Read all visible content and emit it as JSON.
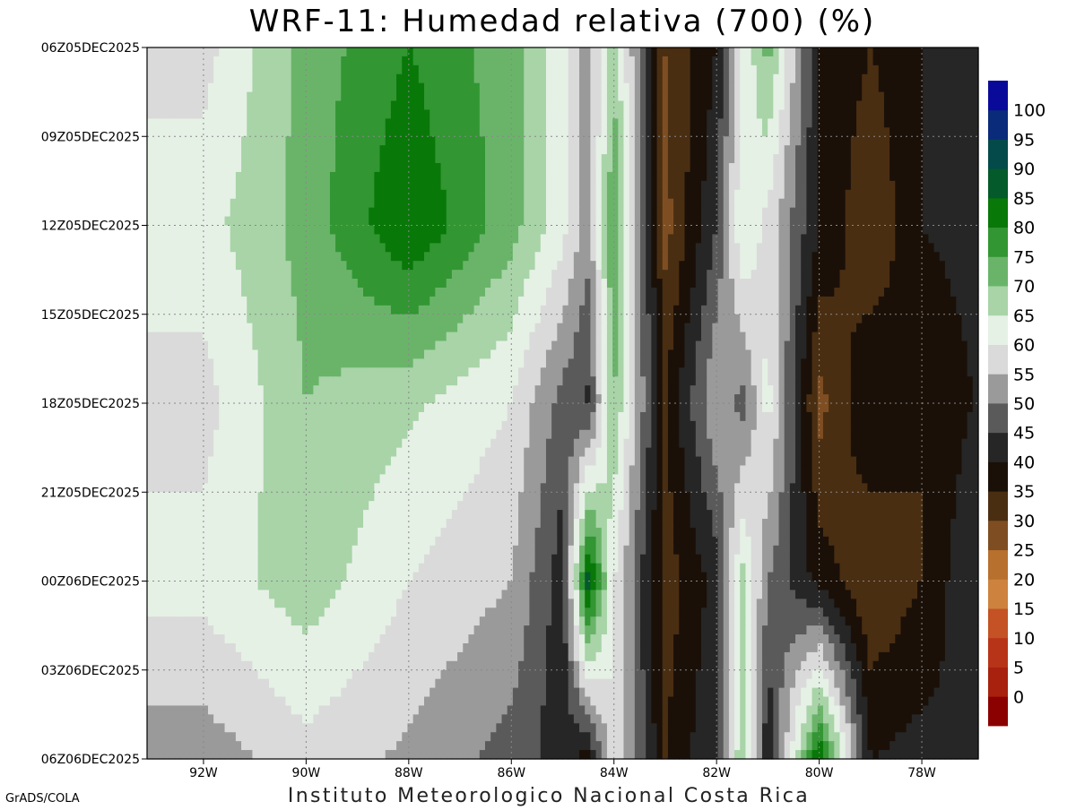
{
  "chart_data": {
    "type": "heatmap",
    "title": "WRF-11: Humedad relativa (700) (%)",
    "subtitle": "Instituto Meteorologico Nacional Costa Rica",
    "credit": "GrADS/COLA",
    "x_axis": {
      "label": "",
      "tick_labels": [
        "92W",
        "90W",
        "88W",
        "86W",
        "84W",
        "82W",
        "80W",
        "78W"
      ],
      "tick_values": [
        -92,
        -90,
        -88,
        -86,
        -84,
        -82,
        -80,
        -78
      ],
      "range": [
        -93.1,
        -76.9
      ]
    },
    "y_axis": {
      "label": "",
      "tick_labels": [
        "06Z05DEC2025",
        "09Z05DEC2025",
        "12Z05DEC2025",
        "15Z05DEC2025",
        "18Z05DEC2025",
        "21Z05DEC2025",
        "00Z06DEC2025",
        "03Z06DEC2025",
        "06Z06DEC2025"
      ],
      "tick_hours": [
        0,
        3,
        6,
        9,
        12,
        15,
        18,
        21,
        24
      ],
      "range_hours": [
        0,
        24
      ],
      "direction": "time increases downward"
    },
    "grid": true,
    "grid_style": "dotted",
    "legend": {
      "placement": "right",
      "levels": [
        "0",
        "5",
        "10",
        "15",
        "20",
        "25",
        "30",
        "35",
        "40",
        "45",
        "50",
        "55",
        "60",
        "65",
        "70",
        "75",
        "80",
        "85",
        "90",
        "95",
        "100"
      ],
      "colors": [
        "#8b0000",
        "#a8200e",
        "#b83418",
        "#c45224",
        "#cd823e",
        "#b8702e",
        "#7e4e22",
        "#4a2e12",
        "#1a1008",
        "#262626",
        "#5a5a5a",
        "#9a9a9a",
        "#dadada",
        "#e6f1e6",
        "#a8d4a8",
        "#6ab46a",
        "#329632",
        "#087808",
        "#045a2a",
        "#054a4a",
        "#0a2a7a",
        "#0a0a9a"
      ]
    },
    "longitudes": [
      -92,
      -90,
      -88,
      -86,
      -85,
      -84.5,
      -84,
      -83,
      -82,
      -81.5,
      -81,
      -80,
      -79,
      -78,
      -77
    ],
    "times_hours": [
      0,
      6,
      12,
      18,
      24
    ],
    "values": [
      [
        58,
        72,
        80,
        72,
        62,
        52,
        68,
        30,
        40,
        60,
        72,
        40,
        35,
        40,
        45
      ],
      [
        63,
        72,
        85,
        72,
        62,
        52,
        76,
        28,
        45,
        65,
        58,
        40,
        30,
        40,
        42
      ],
      [
        58,
        70,
        66,
        60,
        48,
        44,
        70,
        35,
        55,
        48,
        62,
        28,
        40,
        35,
        40
      ],
      [
        62,
        68,
        60,
        55,
        42,
        88,
        60,
        32,
        42,
        67,
        50,
        38,
        30,
        35,
        45
      ],
      [
        52,
        58,
        54,
        48,
        42,
        38,
        60,
        35,
        45,
        70,
        40,
        85,
        40,
        42,
        40
      ]
    ],
    "units": "%"
  }
}
